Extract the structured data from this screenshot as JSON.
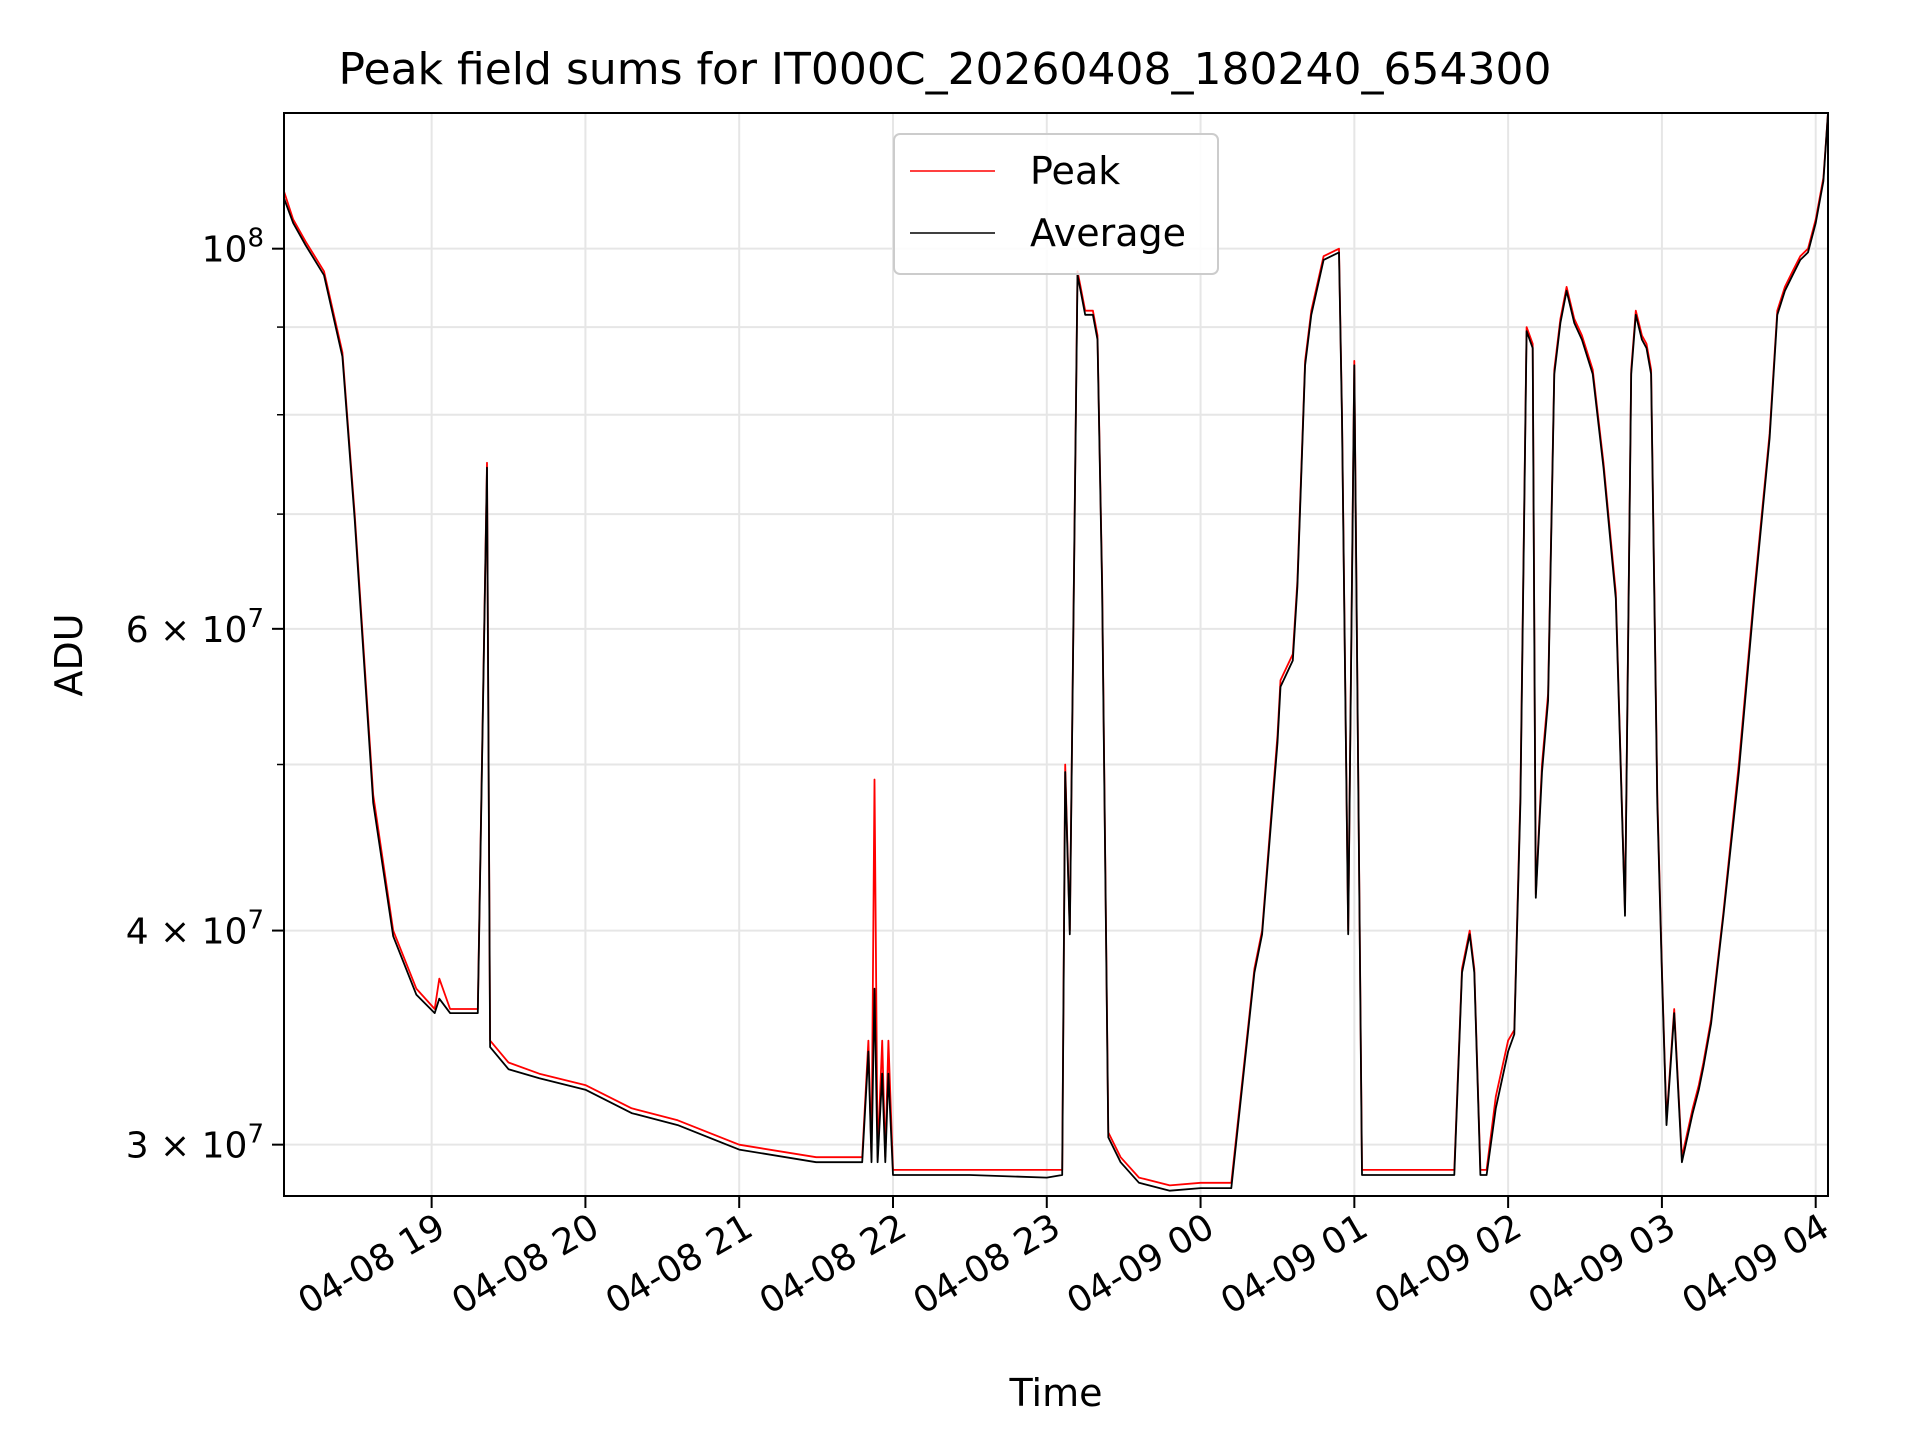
{
  "chart_data": {
    "type": "line",
    "title": "Peak field sums for IT000C_20260408_180240_654300",
    "xlabel": "Time",
    "ylabel": "ADU",
    "yscale": "log",
    "grid": true,
    "legend_position": "top-center",
    "x_unit": "hours since 2026-04-08 00:00",
    "xlim": [
      18.04,
      28.08
    ],
    "ylim": [
      28000000,
      120000000
    ],
    "x_ticks": [
      {
        "value": 19,
        "label": "04-08 19"
      },
      {
        "value": 20,
        "label": "04-08 20"
      },
      {
        "value": 21,
        "label": "04-08 21"
      },
      {
        "value": 22,
        "label": "04-08 22"
      },
      {
        "value": 23,
        "label": "04-08 23"
      },
      {
        "value": 24,
        "label": "04-09 00"
      },
      {
        "value": 25,
        "label": "04-09 01"
      },
      {
        "value": 26,
        "label": "04-09 02"
      },
      {
        "value": 27,
        "label": "04-09 03"
      },
      {
        "value": 28,
        "label": "04-09 04"
      }
    ],
    "y_major_ticks": [
      {
        "value": 100000000,
        "base": "10",
        "exp": "8"
      },
      {
        "value": 60000000,
        "base": "6 × 10",
        "exp": "7"
      },
      {
        "value": 40000000,
        "base": "4 × 10",
        "exp": "7"
      },
      {
        "value": 30000000,
        "base": "3 × 10",
        "exp": "7"
      }
    ],
    "y_minor_ticks": [
      90000000,
      80000000,
      70000000,
      50000000
    ],
    "series": [
      {
        "name": "Peak",
        "color": "#ff0000",
        "x": [
          18.04,
          18.1,
          18.18,
          18.3,
          18.42,
          18.5,
          18.62,
          18.75,
          18.9,
          19.02,
          19.05,
          19.12,
          19.2,
          19.3,
          19.36,
          19.38,
          19.5,
          19.7,
          20.0,
          20.3,
          20.6,
          21.0,
          21.5,
          21.8,
          21.84,
          21.86,
          21.88,
          21.9,
          21.93,
          21.95,
          21.97,
          22.0,
          22.5,
          23.0,
          23.1,
          23.12,
          23.15,
          23.2,
          23.22,
          23.25,
          23.3,
          23.33,
          23.36,
          23.4,
          23.48,
          23.6,
          23.8,
          24.0,
          24.2,
          24.35,
          24.4,
          24.5,
          24.52,
          24.6,
          24.63,
          24.68,
          24.72,
          24.8,
          24.9,
          24.92,
          24.96,
          25.0,
          25.05,
          25.1,
          25.3,
          25.5,
          25.65,
          25.7,
          25.75,
          25.78,
          25.82,
          25.86,
          25.92,
          26.0,
          26.04,
          26.08,
          26.12,
          26.16,
          26.18,
          26.22,
          26.26,
          26.3,
          26.34,
          26.38,
          26.43,
          26.48,
          26.55,
          26.62,
          26.7,
          26.76,
          26.8,
          26.83,
          26.87,
          26.9,
          26.93,
          26.97,
          27.0,
          27.03,
          27.08,
          27.13,
          27.2,
          27.24,
          27.27,
          27.32,
          27.4,
          27.5,
          27.6,
          27.7,
          27.75,
          27.8,
          27.85,
          27.9,
          27.95,
          28.0,
          28.05,
          28.08
        ],
        "y": [
          108000000,
          104000000,
          101000000,
          97000000,
          87000000,
          70000000,
          48000000,
          40000000,
          37000000,
          36000000,
          37500000,
          36000000,
          36000000,
          36000000,
          75000000,
          34500000,
          33500000,
          33000000,
          32500000,
          31500000,
          31000000,
          30000000,
          29500000,
          29500000,
          34500000,
          29500000,
          49000000,
          29500000,
          34500000,
          29500000,
          34500000,
          29000000,
          29000000,
          29000000,
          29000000,
          50000000,
          40000000,
          97000000,
          95000000,
          92000000,
          92000000,
          89000000,
          64000000,
          30500000,
          29500000,
          28700000,
          28400000,
          28500000,
          28500000,
          38000000,
          40000000,
          52000000,
          56000000,
          58000000,
          64000000,
          86000000,
          92000000,
          99000000,
          100000000,
          80000000,
          40000000,
          86000000,
          29000000,
          29000000,
          29000000,
          29000000,
          29000000,
          38000000,
          40000000,
          38000000,
          29000000,
          29000000,
          32000000,
          34500000,
          35000000,
          48000000,
          90000000,
          88000000,
          42000000,
          50000000,
          55000000,
          85000000,
          91000000,
          95000000,
          91000000,
          89000000,
          85000000,
          75000000,
          63000000,
          41000000,
          85000000,
          92000000,
          89000000,
          88000000,
          85000000,
          48000000,
          38000000,
          31000000,
          36000000,
          29500000,
          31500000,
          32500000,
          33500000,
          35500000,
          41000000,
          50000000,
          63000000,
          78000000,
          92000000,
          95000000,
          97000000,
          99000000,
          100000000,
          104000000,
          110000000,
          120000000
        ]
      },
      {
        "name": "Average",
        "color": "#000000",
        "x": [
          18.04,
          18.1,
          18.18,
          18.3,
          18.42,
          18.5,
          18.62,
          18.75,
          18.9,
          19.02,
          19.05,
          19.12,
          19.2,
          19.3,
          19.36,
          19.38,
          19.5,
          19.7,
          20.0,
          20.3,
          20.6,
          21.0,
          21.5,
          21.8,
          21.84,
          21.86,
          21.88,
          21.9,
          21.93,
          21.95,
          21.97,
          22.0,
          22.5,
          23.0,
          23.1,
          23.12,
          23.15,
          23.2,
          23.22,
          23.25,
          23.3,
          23.33,
          23.36,
          23.4,
          23.48,
          23.6,
          23.8,
          24.0,
          24.2,
          24.35,
          24.4,
          24.5,
          24.52,
          24.6,
          24.63,
          24.68,
          24.72,
          24.8,
          24.9,
          24.92,
          24.96,
          25.0,
          25.05,
          25.1,
          25.3,
          25.5,
          25.65,
          25.7,
          25.75,
          25.78,
          25.82,
          25.86,
          25.92,
          26.0,
          26.04,
          26.08,
          26.12,
          26.16,
          26.18,
          26.22,
          26.26,
          26.3,
          26.34,
          26.38,
          26.43,
          26.48,
          26.55,
          26.62,
          26.7,
          26.76,
          26.8,
          26.83,
          26.87,
          26.9,
          26.93,
          26.97,
          27.0,
          27.03,
          27.08,
          27.13,
          27.2,
          27.24,
          27.27,
          27.32,
          27.4,
          27.5,
          27.6,
          27.7,
          27.75,
          27.8,
          27.85,
          27.9,
          27.95,
          28.0,
          28.05,
          28.08
        ],
        "y": [
          107000000,
          103500000,
          100500000,
          96500000,
          86500000,
          69500000,
          47500000,
          39700000,
          36700000,
          35800000,
          36500000,
          35800000,
          35800000,
          35800000,
          74500000,
          34200000,
          33200000,
          32800000,
          32300000,
          31300000,
          30800000,
          29800000,
          29300000,
          29300000,
          34000000,
          29300000,
          37000000,
          29300000,
          33000000,
          29300000,
          33000000,
          28800000,
          28800000,
          28700000,
          28800000,
          49500000,
          39800000,
          96500000,
          94500000,
          91500000,
          91500000,
          88500000,
          63500000,
          30300000,
          29300000,
          28500000,
          28200000,
          28300000,
          28300000,
          37800000,
          39800000,
          51500000,
          55500000,
          57500000,
          63500000,
          85500000,
          91500000,
          98500000,
          99500000,
          79500000,
          39800000,
          85500000,
          28800000,
          28800000,
          28800000,
          28800000,
          28800000,
          37800000,
          39800000,
          37800000,
          28800000,
          28800000,
          31500000,
          34000000,
          34800000,
          47500000,
          89500000,
          87500000,
          41800000,
          49500000,
          54500000,
          84500000,
          90500000,
          94500000,
          90500000,
          88500000,
          84500000,
          74500000,
          62500000,
          40800000,
          84500000,
          91500000,
          88500000,
          87500000,
          84500000,
          47500000,
          37800000,
          30800000,
          35800000,
          29300000,
          31300000,
          32300000,
          33300000,
          35300000,
          40800000,
          49500000,
          62500000,
          77500000,
          91500000,
          94500000,
          96500000,
          98500000,
          99500000,
          103500000,
          109500000,
          120000000
        ]
      }
    ]
  }
}
